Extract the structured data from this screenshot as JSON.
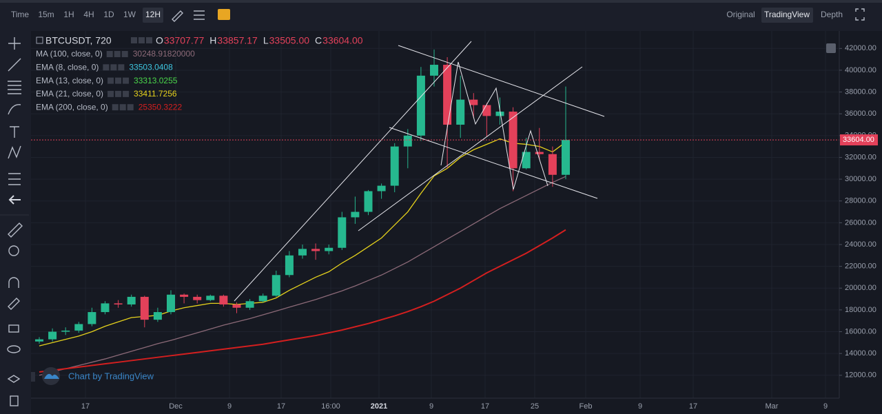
{
  "toolbar": {
    "intervals": [
      "Time",
      "15m",
      "1H",
      "4H",
      "1D",
      "1W",
      "12H"
    ],
    "views": [
      "Original",
      "TradingView",
      "Depth"
    ]
  },
  "legend": {
    "symbol": "BTCUSDT, 720",
    "ohlc": [
      {
        "key": "O",
        "value": "33707.77"
      },
      {
        "key": "H",
        "value": "33857.17"
      },
      {
        "key": "L",
        "value": "33505.00"
      },
      {
        "key": "C",
        "value": "33604.00"
      }
    ]
  },
  "x_axis_labels": [
    "17",
    "Dec",
    "9",
    "17",
    "16:00",
    "2021",
    "9",
    "17",
    "25",
    "Feb",
    "9",
    "17",
    "Mar",
    "9"
  ],
  "watermark": "Chart by TradingView",
  "chart_data": {
    "type": "candlestick",
    "up_color": "#26b88f",
    "down_color": "#e3415a",
    "open": [
      15100,
      15300,
      16000,
      16100,
      16700,
      17800,
      18600,
      18500,
      19200,
      17100,
      17800,
      19400,
      19200,
      18900,
      19300,
      18500,
      18200,
      18800,
      19300,
      21200,
      23000,
      23600,
      23400,
      23700,
      26500,
      27000,
      28900,
      29400,
      33000,
      34000,
      39500,
      40500,
      35000,
      37300,
      36800,
      35800,
      36200,
      31000,
      32500,
      32300,
      30400
    ],
    "high": [
      15500,
      16300,
      16400,
      16900,
      18200,
      18800,
      18900,
      19400,
      19300,
      18200,
      19800,
      19500,
      19400,
      19400,
      19400,
      18700,
      19000,
      19500,
      21600,
      23400,
      24000,
      24100,
      24000,
      27000,
      28400,
      29000,
      29600,
      33300,
      34600,
      40300,
      41900,
      41200,
      39500,
      37900,
      37000,
      37500,
      36600,
      33800,
      34700,
      33000,
      38500
    ],
    "low": [
      14900,
      15100,
      15700,
      15900,
      16500,
      17600,
      18200,
      18300,
      16400,
      16900,
      17600,
      18600,
      18600,
      18800,
      18300,
      17700,
      18000,
      18700,
      19200,
      21000,
      22700,
      22600,
      23100,
      23500,
      25900,
      26700,
      28200,
      28800,
      31000,
      33500,
      38500,
      31000,
      33800,
      35600,
      33900,
      35000,
      28900,
      30900,
      31800,
      29300,
      30000
    ],
    "close": [
      15300,
      16000,
      16100,
      16700,
      17800,
      18600,
      18500,
      19200,
      17100,
      17800,
      19400,
      19200,
      18900,
      19300,
      18500,
      18200,
      18800,
      19300,
      21200,
      23000,
      23600,
      23400,
      23700,
      26500,
      27000,
      28900,
      29400,
      33000,
      34000,
      39500,
      40500,
      35000,
      37300,
      36800,
      35800,
      36200,
      31000,
      32500,
      32300,
      30400,
      33604
    ],
    "series": [
      {
        "name": "MA (100, close, 0)",
        "color": "#8c6a78",
        "value_label": "30248.91820000",
        "values": [
          12000,
          12300,
          12600,
          12900,
          13200,
          13500,
          13850,
          14200,
          14550,
          14900,
          15200,
          15550,
          15900,
          16250,
          16600,
          16900,
          17200,
          17550,
          17900,
          18250,
          18600,
          18950,
          19350,
          19750,
          20200,
          20700,
          21200,
          21800,
          22400,
          23100,
          23800,
          24500,
          25200,
          25900,
          26600,
          27300,
          27900,
          28500,
          29100,
          29700,
          30249
        ]
      },
      {
        "name": "EMA (21, close, 0)",
        "color": "#e6d21c",
        "value_label": "33411.7256",
        "values": [
          14700,
          15000,
          15300,
          15600,
          16000,
          16500,
          16900,
          17300,
          17400,
          17500,
          17900,
          18200,
          18400,
          18600,
          18600,
          18500,
          18600,
          18700,
          19100,
          19800,
          20400,
          21000,
          21500,
          22300,
          23000,
          23800,
          24600,
          25800,
          27000,
          28700,
          30300,
          31000,
          32000,
          32700,
          33200,
          33700,
          33300,
          33200,
          33000,
          32500,
          33400
        ]
      },
      {
        "name": "EMA (200, close, 0)",
        "color": "#d41f1f",
        "value_label": "25350.3222",
        "values": [
          12300,
          12450,
          12600,
          12750,
          12900,
          13050,
          13200,
          13350,
          13500,
          13650,
          13800,
          13950,
          14100,
          14250,
          14400,
          14550,
          14700,
          14850,
          15050,
          15250,
          15450,
          15650,
          15900,
          16150,
          16450,
          16750,
          17100,
          17450,
          17850,
          18300,
          18800,
          19400,
          20000,
          20700,
          21400,
          22000,
          22600,
          23200,
          23900,
          24600,
          25350
        ]
      }
    ],
    "other_indicators": [
      {
        "name": "EMA (8, close, 0)",
        "color": "#3ec6e0",
        "value_label": "33503.0408"
      },
      {
        "name": "EMA (13, close, 0)",
        "color": "#4ad64a",
        "value_label": "33313.0255"
      }
    ],
    "last_price": {
      "value": 33604,
      "label": "33604.00"
    },
    "ylim": [
      9900,
      43600
    ],
    "yticks": [
      {
        "value": 12000,
        "label": "12000.00"
      },
      {
        "value": 14000,
        "label": "14000.00"
      },
      {
        "value": 16000,
        "label": "16000.00"
      },
      {
        "value": 18000,
        "label": "18000.00"
      },
      {
        "value": 20000,
        "label": "20000.00"
      },
      {
        "value": 22000,
        "label": "22000.00"
      },
      {
        "value": 24000,
        "label": "24000.00"
      },
      {
        "value": 26000,
        "label": "26000.00"
      },
      {
        "value": 28000,
        "label": "28000.00"
      },
      {
        "value": 30000,
        "label": "30000.00"
      },
      {
        "value": 32000,
        "label": "32000.00"
      },
      {
        "value": 34000,
        "label": "34000.00"
      },
      {
        "value": 36000,
        "label": "36000.00"
      },
      {
        "value": 38000,
        "label": "38000.00"
      },
      {
        "value": 40000,
        "label": "40000.00"
      },
      {
        "value": 42000,
        "label": "42000.00"
      }
    ],
    "grid": true
  }
}
